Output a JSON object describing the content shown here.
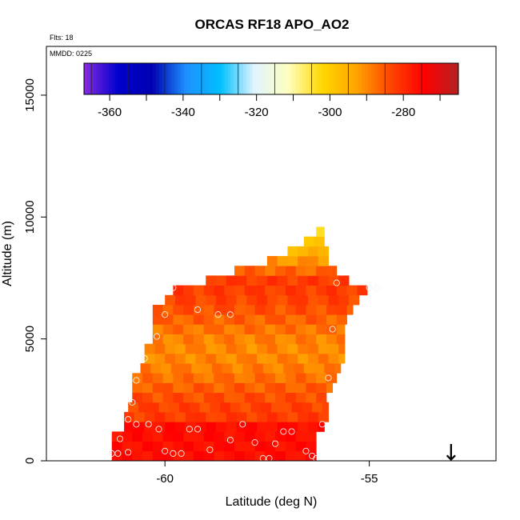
{
  "chart_data": {
    "type": "heatmap",
    "title": "ORCAS RF18 APO_AO2",
    "xlabel": "Latitude (deg N)",
    "ylabel": "Altitude (m)",
    "annotations": {
      "flights": "Flts: 18",
      "date": "MMDD: 0225"
    },
    "xlim": [
      -62.9,
      -51.9
    ],
    "ylim": [
      0,
      17000
    ],
    "x_ticks": [
      {
        "value": -60,
        "label": "-60"
      },
      {
        "value": -55,
        "label": "-55"
      }
    ],
    "y_ticks": [
      {
        "value": 0,
        "label": "0"
      },
      {
        "value": 5000,
        "label": "5000"
      },
      {
        "value": 10000,
        "label": "10000"
      },
      {
        "value": 15000,
        "label": "15000"
      }
    ],
    "colorbar": {
      "range": [
        -367,
        -265
      ],
      "ticks": [
        {
          "value": -360,
          "label": "-360"
        },
        {
          "value": -340,
          "label": "-340"
        },
        {
          "value": -320,
          "label": "-320"
        },
        {
          "value": -300,
          "label": "-300"
        },
        {
          "value": -280,
          "label": "-280"
        }
      ],
      "colors": [
        "#8a2be2",
        "#0000cd",
        "#0000b0",
        "#1e90ff",
        "#00bfff",
        "#e0f4ff",
        "#ffffc0",
        "#ffd700",
        "#ffa500",
        "#ff4500",
        "#ff0000",
        "#b22222"
      ]
    },
    "field": {
      "lat_step": 0.25,
      "alt_step": 400,
      "rows": [
        {
          "alt": 0,
          "lat_min": -61.3,
          "lat_max": -56.3
        },
        {
          "alt": 400,
          "lat_min": -61.3,
          "lat_max": -56.3
        },
        {
          "alt": 800,
          "lat_min": -61.3,
          "lat_max": -56.2
        },
        {
          "alt": 1200,
          "lat_min": -61.0,
          "lat_max": -56.1
        },
        {
          "alt": 1600,
          "lat_min": -61.0,
          "lat_max": -56.0
        },
        {
          "alt": 2000,
          "lat_min": -60.9,
          "lat_max": -56.0
        },
        {
          "alt": 2400,
          "lat_min": -60.8,
          "lat_max": -56.0
        },
        {
          "alt": 2800,
          "lat_min": -60.8,
          "lat_max": -55.9
        },
        {
          "alt": 3200,
          "lat_min": -60.8,
          "lat_max": -55.8
        },
        {
          "alt": 3600,
          "lat_min": -60.6,
          "lat_max": -55.7
        },
        {
          "alt": 4000,
          "lat_min": -60.5,
          "lat_max": -55.6
        },
        {
          "alt": 4400,
          "lat_min": -60.5,
          "lat_max": -55.6
        },
        {
          "alt": 4800,
          "lat_min": -60.3,
          "lat_max": -55.6
        },
        {
          "alt": 5200,
          "lat_min": -60.3,
          "lat_max": -55.6
        },
        {
          "alt": 5600,
          "lat_min": -60.3,
          "lat_max": -55.5
        },
        {
          "alt": 6000,
          "lat_min": -60.3,
          "lat_max": -55.4
        },
        {
          "alt": 6400,
          "lat_min": -60.0,
          "lat_max": -55.2
        },
        {
          "alt": 6800,
          "lat_min": -59.8,
          "lat_max": -55.0
        },
        {
          "alt": 7200,
          "lat_min": -59.0,
          "lat_max": -55.4
        },
        {
          "alt": 7600,
          "lat_min": -58.3,
          "lat_max": -55.8
        },
        {
          "alt": 8000,
          "lat_min": -57.5,
          "lat_max": -56.0
        },
        {
          "alt": 8400,
          "lat_min": -57.0,
          "lat_max": -56.0
        },
        {
          "alt": 8800,
          "lat_min": -56.6,
          "lat_max": -56.0
        },
        {
          "alt": 9200,
          "lat_min": -56.3,
          "lat_max": -56.1
        }
      ],
      "base_value": -286,
      "low_alt_value": -276,
      "top_value": -305
    },
    "points": [
      {
        "lat": -61.3,
        "alt": 300
      },
      {
        "lat": -61.15,
        "alt": 300
      },
      {
        "lat": -60.9,
        "alt": 350
      },
      {
        "lat": -61.1,
        "alt": 900
      },
      {
        "lat": -60.9,
        "alt": 1700
      },
      {
        "lat": -60.7,
        "alt": 1500
      },
      {
        "lat": -60.4,
        "alt": 1500
      },
      {
        "lat": -60.15,
        "alt": 1300
      },
      {
        "lat": -60.0,
        "alt": 400
      },
      {
        "lat": -59.8,
        "alt": 300
      },
      {
        "lat": -59.6,
        "alt": 300
      },
      {
        "lat": -59.4,
        "alt": 1300
      },
      {
        "lat": -59.2,
        "alt": 1300
      },
      {
        "lat": -58.9,
        "alt": 450
      },
      {
        "lat": -58.4,
        "alt": 850
      },
      {
        "lat": -58.1,
        "alt": 1500
      },
      {
        "lat": -57.8,
        "alt": 750
      },
      {
        "lat": -57.6,
        "alt": 100
      },
      {
        "lat": -57.45,
        "alt": 100
      },
      {
        "lat": -57.3,
        "alt": 700
      },
      {
        "lat": -57.1,
        "alt": 1200
      },
      {
        "lat": -56.9,
        "alt": 1200
      },
      {
        "lat": -56.55,
        "alt": 400
      },
      {
        "lat": -56.4,
        "alt": 200
      },
      {
        "lat": -56.3,
        "alt": 100
      },
      {
        "lat": -56.15,
        "alt": 1500
      },
      {
        "lat": -60.8,
        "alt": 2400
      },
      {
        "lat": -60.7,
        "alt": 3300
      },
      {
        "lat": -60.5,
        "alt": 4200
      },
      {
        "lat": -60.2,
        "alt": 5100
      },
      {
        "lat": -60.0,
        "alt": 6000
      },
      {
        "lat": -59.8,
        "alt": 7100
      },
      {
        "lat": -59.2,
        "alt": 6200
      },
      {
        "lat": -58.7,
        "alt": 6000
      },
      {
        "lat": -58.4,
        "alt": 6000
      },
      {
        "lat": -56.0,
        "alt": 3400
      },
      {
        "lat": -55.9,
        "alt": 5400
      },
      {
        "lat": -55.8,
        "alt": 7300
      },
      {
        "lat": -55.0,
        "alt": 7100
      },
      {
        "lat": -54.8,
        "alt": 7100
      }
    ],
    "marker": {
      "lat": -53.0,
      "alt": 600,
      "symbol": "↓"
    }
  }
}
